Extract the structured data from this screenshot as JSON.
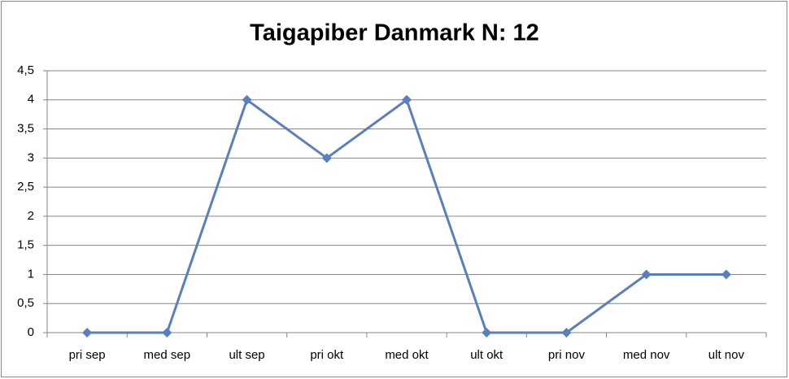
{
  "chart_data": {
    "type": "line",
    "title": "Taigapiber Danmark N: 12",
    "categories": [
      "pri sep",
      "med sep",
      "ult sep",
      "pri okt",
      "med okt",
      "ult okt",
      "pri nov",
      "med nov",
      "ult nov"
    ],
    "values": [
      0,
      0,
      4,
      3,
      4,
      0,
      0,
      1,
      1
    ],
    "color": "#5a7fbe",
    "ylim": [
      0,
      4.5
    ],
    "yticks": [
      0,
      {
        "value": 0.5,
        "label": "0,5"
      },
      1,
      {
        "value": 1.5,
        "label": "1,5"
      },
      2,
      {
        "value": 2.5,
        "label": "2,5"
      },
      3,
      {
        "value": 3.5,
        "label": "3,5"
      },
      4,
      {
        "value": 4.5,
        "label": "4,5"
      }
    ],
    "grid": true
  }
}
